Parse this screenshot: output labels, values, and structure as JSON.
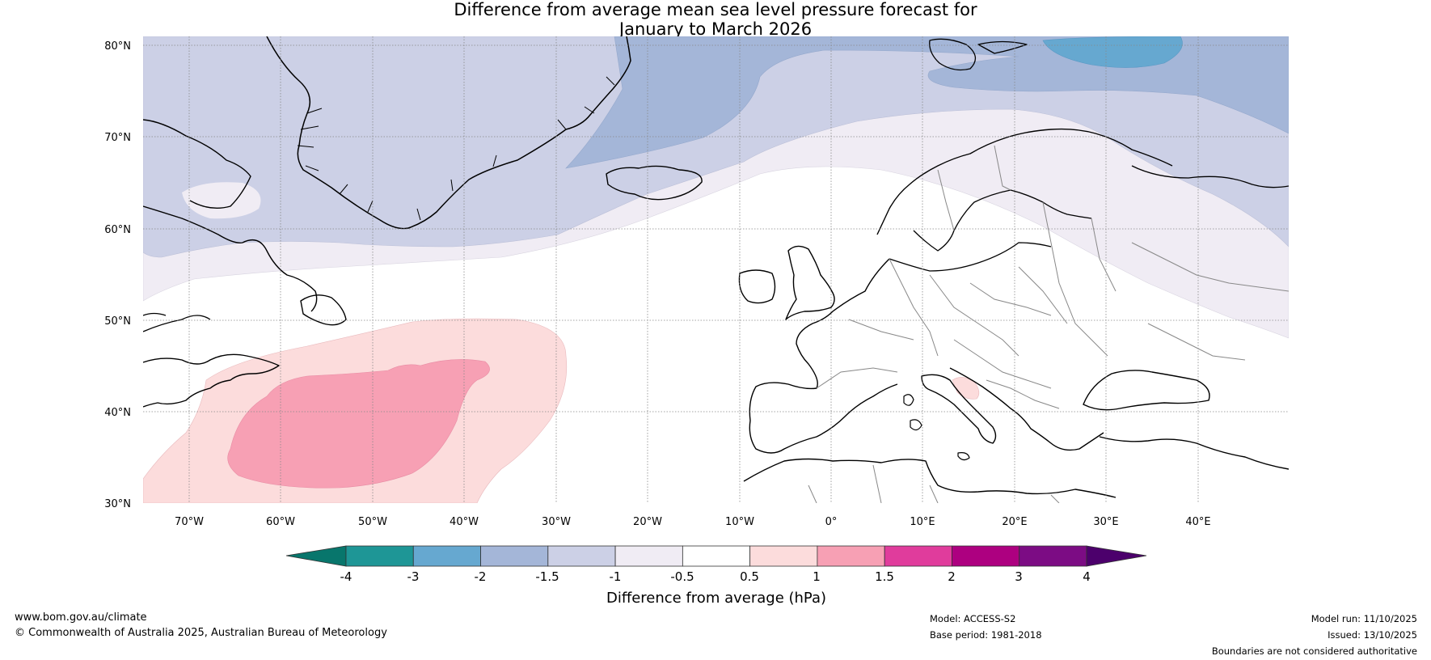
{
  "title": {
    "line1": "Difference from average mean sea level pressure forecast for",
    "line2": "January to March 2026"
  },
  "map": {
    "lat_labels": [
      "80°N",
      "70°N",
      "60°N",
      "50°N",
      "40°N",
      "30°N"
    ],
    "lon_labels": [
      "70°W",
      "60°W",
      "50°W",
      "40°W",
      "30°W",
      "20°W",
      "10°W",
      "0°",
      "10°E",
      "20°E",
      "30°E",
      "40°E"
    ]
  },
  "colorbar": {
    "ticks": [
      "-4",
      "-3",
      "-2",
      "-1.5",
      "-1",
      "-0.5",
      "0.5",
      "1",
      "1.5",
      "2",
      "3",
      "4"
    ],
    "label": "Difference from average (hPa)",
    "colors": [
      "#1e9696",
      "#66a8d0",
      "#a4b6d8",
      "#ccd0e6",
      "#f0ecf4",
      "#ffffff",
      "#fcdcdc",
      "#f7a0b4",
      "#e03c9c",
      "#ad0080",
      "#7c0c84"
    ],
    "low_extend_color": "#08766c",
    "high_extend_color": "#4c006c"
  },
  "footer": {
    "url": "www.bom.gov.au/climate",
    "copyright": "© Commonwealth of Australia 2025, Australian Bureau of Meteorology",
    "model": "Model: ACCESS-S2",
    "base_period": "Base period: 1981-2018",
    "model_run": "Model run: 11/10/2025",
    "issued": "Issued: 13/10/2025",
    "disclaimer": "Boundaries are not considered authoritative"
  }
}
